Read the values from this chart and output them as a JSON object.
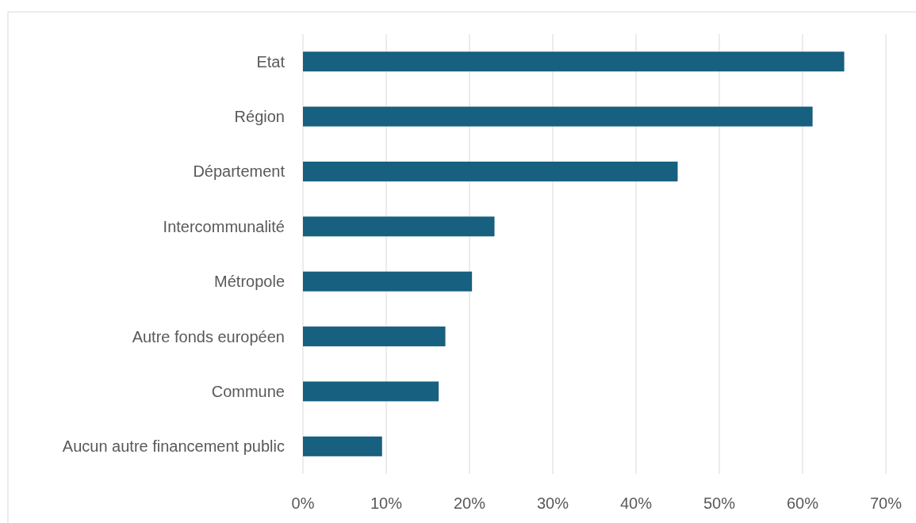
{
  "chart_data": {
    "type": "bar",
    "orientation": "horizontal",
    "categories": [
      "Etat",
      "Région",
      "Département",
      "Intercommunalité",
      "Métropole",
      "Autre fonds européen",
      "Commune",
      "Aucun autre financement public"
    ],
    "values": [
      65,
      61.2,
      45,
      23,
      20.3,
      17.1,
      16.3,
      9.5
    ],
    "color": "#17607f",
    "xlim": [
      0,
      70
    ],
    "xticks": [
      {
        "value": 0,
        "label": "0%"
      },
      {
        "value": 10,
        "label": "10%"
      },
      {
        "value": 20,
        "label": "20%"
      },
      {
        "value": 30,
        "label": "30%"
      },
      {
        "value": 40,
        "label": "40%"
      },
      {
        "value": 50,
        "label": "50%"
      },
      {
        "value": 60,
        "label": "60%"
      },
      {
        "value": 70,
        "label": "70%"
      }
    ],
    "grid": "x"
  }
}
